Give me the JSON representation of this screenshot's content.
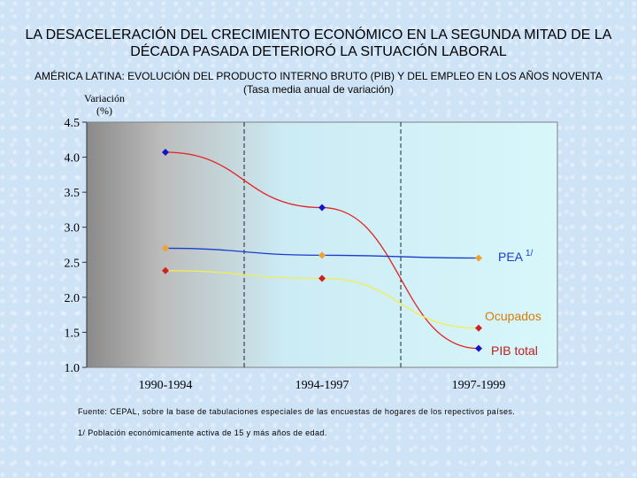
{
  "title_line1": "LA DESACELERACIÓN DEL CRECIMIENTO ECONÓMICO EN LA SEGUNDA MITAD DE LA",
  "title_line2": "DÉCADA PASADA DETERIORÓ LA SITUACIÓN LABORAL",
  "subtitle_line1": "AMÉRICA LATINA: EVOLUCIÓN DEL PRODUCTO INTERNO BRUTO (PIB) Y DEL EMPLEO EN LOS AÑOS NOVENTA",
  "subtitle_line2": "(Tasa media anual de variación)",
  "yaxis_title_line1": "Variación",
  "yaxis_title_line2": "(%)",
  "footnote_source": "Fuente: CEPAL, sobre la base de tabulaciones especiales de las encuestas de hogares de los repectivos países.",
  "footnote_1": "1/ Población económicamente activa de 15 y más años de edad.",
  "chart_data": {
    "type": "line",
    "categories": [
      "1990-1994",
      "1994-1997",
      "1997-1999"
    ],
    "ylim": [
      1.0,
      4.5
    ],
    "yticks": [
      "1.0",
      "1.5",
      "2.0",
      "2.5",
      "3.0",
      "3.5",
      "4.0",
      "4.5"
    ],
    "series": [
      {
        "name": "PIB total",
        "values": [
          4.07,
          3.28,
          1.27
        ],
        "marker_color": "#1515c8",
        "line_color": "#e32222",
        "label_color": "#c21d1d"
      },
      {
        "name": "PEA",
        "superscript": "1/",
        "values": [
          2.7,
          2.6,
          2.56
        ],
        "marker_color": "#f0a030",
        "line_color": "#1a3ccc",
        "label_color": "#1a3ccc"
      },
      {
        "name": "Ocupados",
        "values": [
          2.38,
          2.27,
          1.56
        ],
        "marker_color": "#d02020",
        "line_color": "#f2ee50",
        "label_color": "#d97b0a"
      }
    ]
  }
}
